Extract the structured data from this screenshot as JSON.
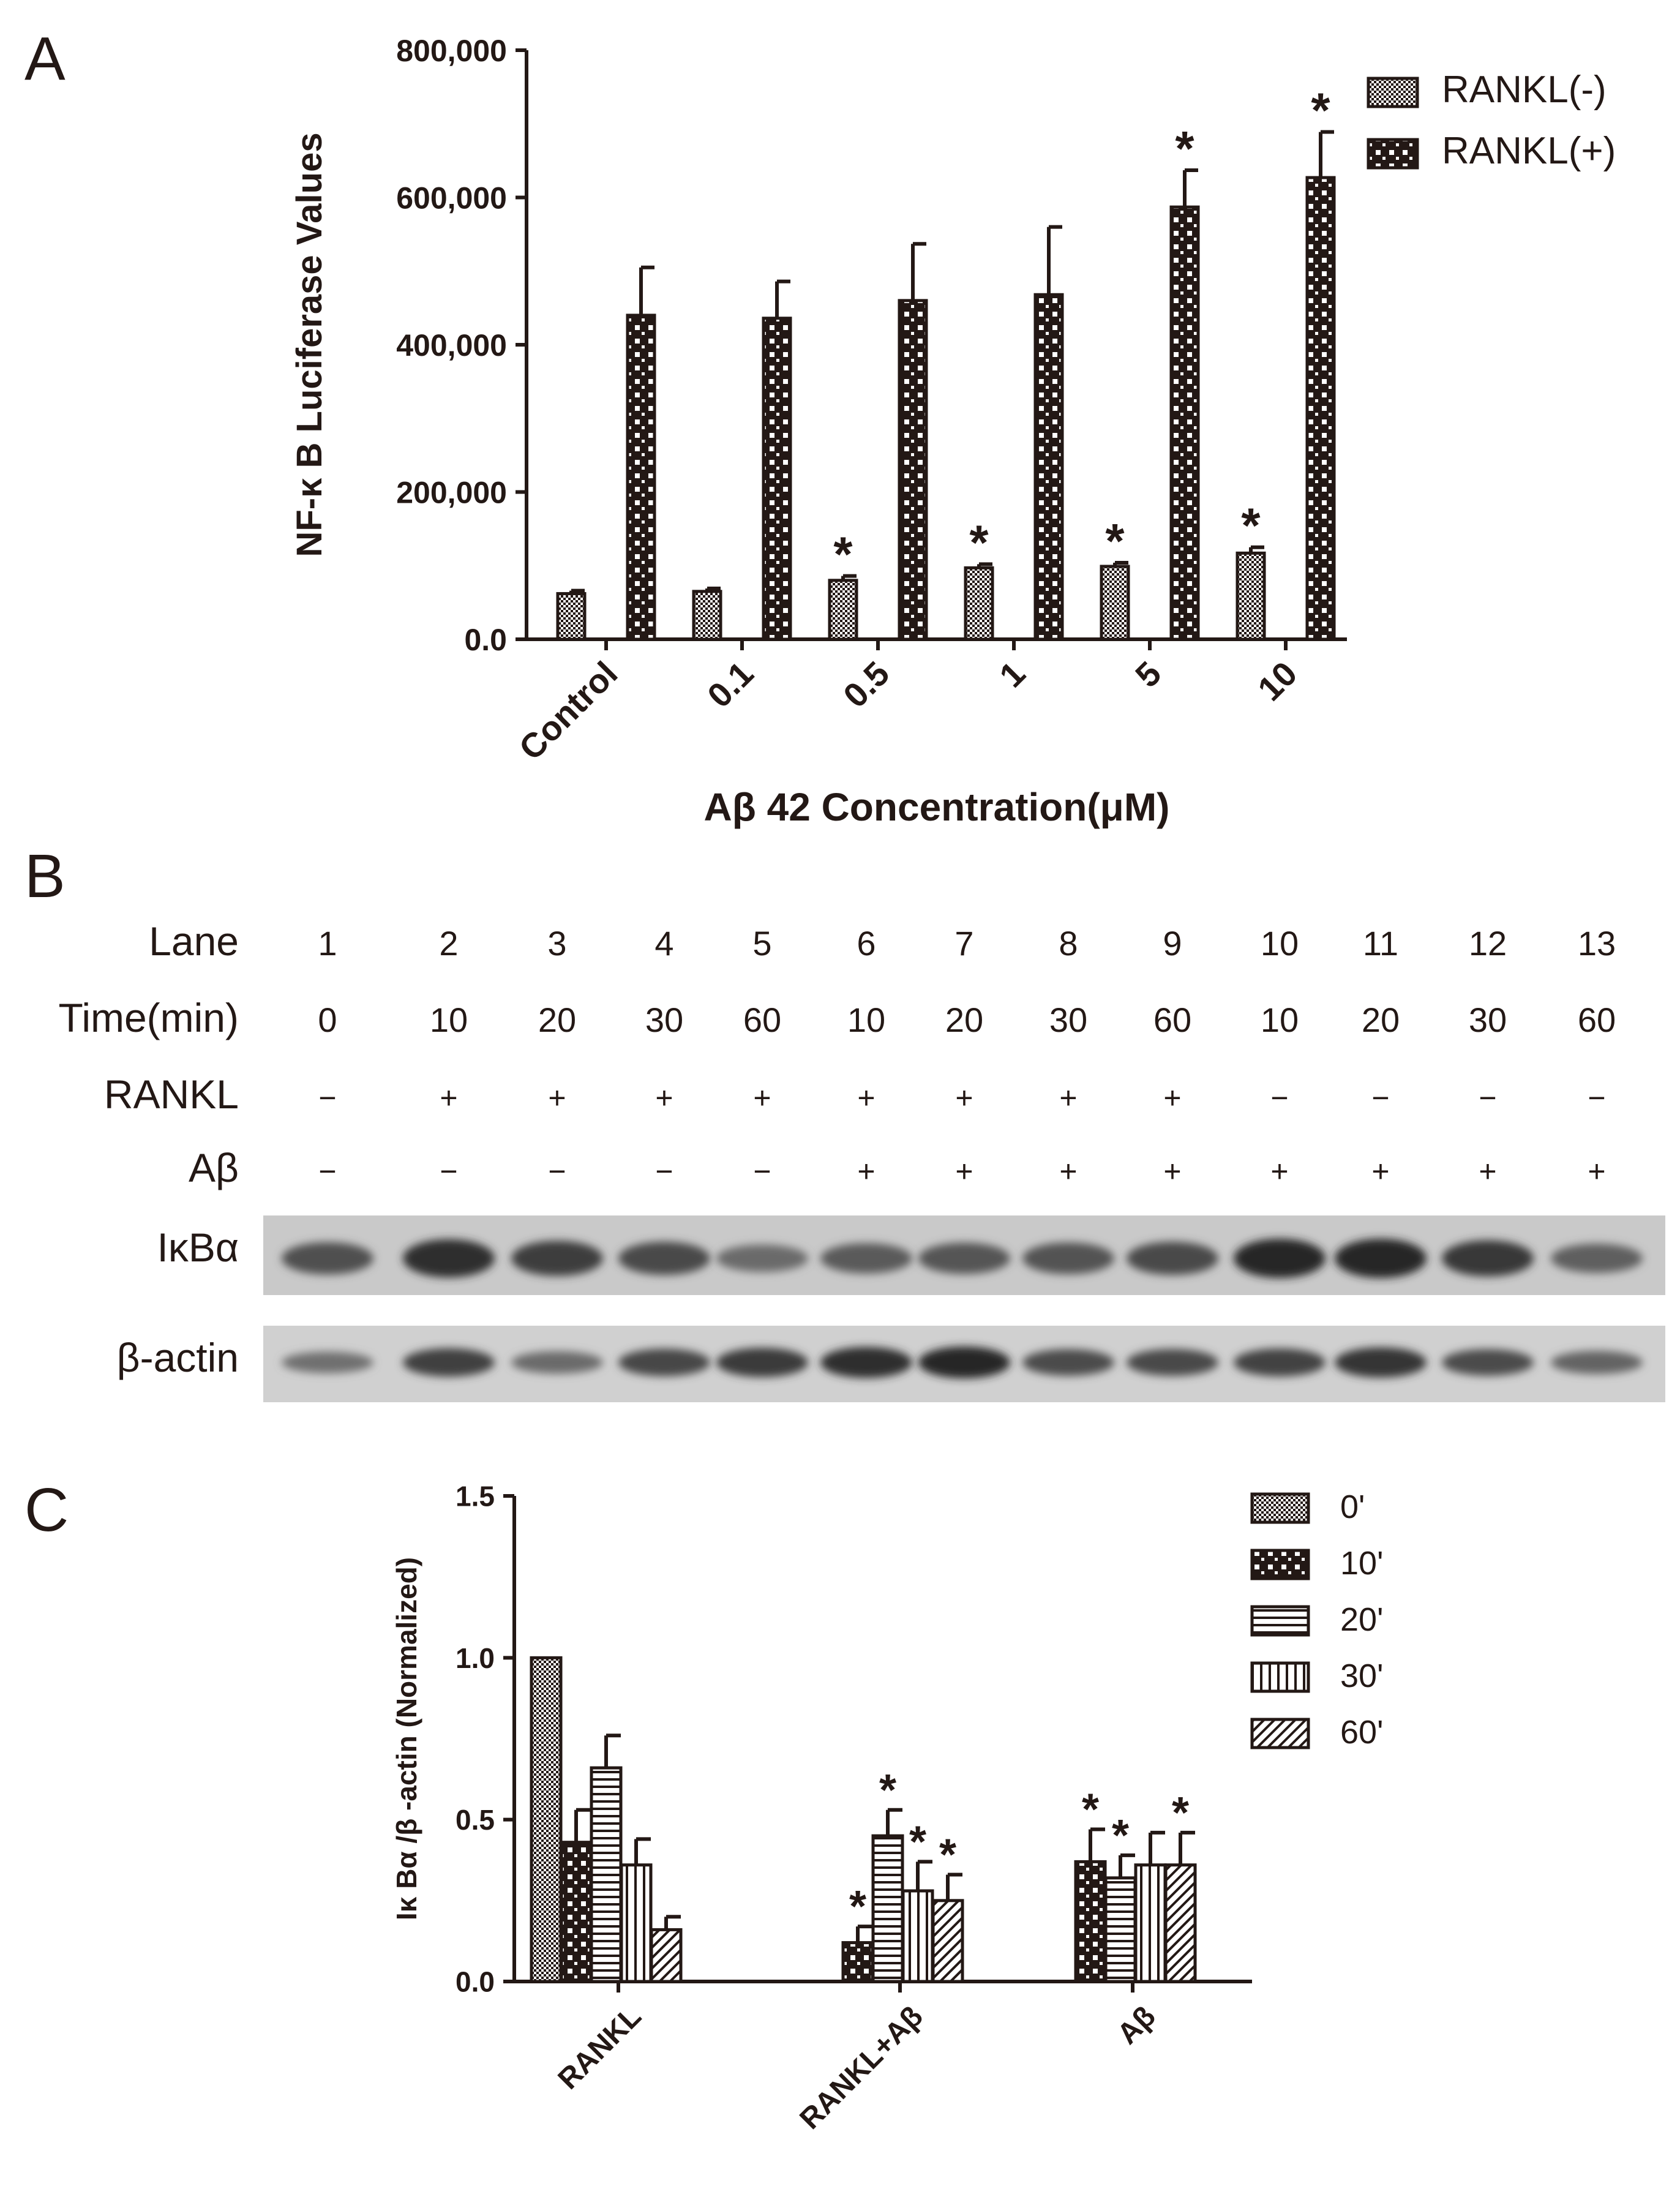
{
  "panel_labels": {
    "a": "A",
    "b": "B",
    "c": "C"
  },
  "colors": {
    "ink": "#231815",
    "background": "#ffffff",
    "band": "#1c1c1c"
  },
  "chart_data": [
    {
      "type": "bar",
      "panel": "A",
      "ylabel": "NF-κ B Luciferase Values",
      "xlabel": "Aβ 42 Concentration(μM)",
      "categories": [
        "Control",
        "0.1",
        "0.5",
        "1",
        "5",
        "10"
      ],
      "ylim": [
        0,
        800000
      ],
      "yticks": [
        0,
        200000,
        400000,
        600000,
        800000
      ],
      "ytick_labels": [
        "0.0",
        "200,000",
        "400,000",
        "600,000",
        "800,000"
      ],
      "legend_position": "top-right",
      "series": [
        {
          "name": "RANKL(-)",
          "pattern": "fine-checker",
          "values": [
            62000,
            65000,
            80000,
            97000,
            99000,
            117000
          ],
          "errors": [
            4000,
            4000,
            6000,
            5000,
            5000,
            8000
          ],
          "significant": [
            false,
            false,
            true,
            true,
            true,
            true
          ]
        },
        {
          "name": "RANKL(+)",
          "pattern": "coarse-checker",
          "values": [
            440000,
            436000,
            460000,
            468000,
            587000,
            627000
          ],
          "errors": [
            65000,
            50000,
            77000,
            92000,
            50000,
            62000
          ],
          "significant": [
            false,
            false,
            false,
            false,
            true,
            true
          ]
        }
      ],
      "significance_mark": "*"
    },
    {
      "type": "bar",
      "panel": "C",
      "ylabel": "Iκ Bα /β -actin (Normalized)",
      "xlabel": "",
      "categories": [
        "RANKL",
        "RANKL+Aβ",
        "Aβ"
      ],
      "ylim": [
        0,
        1.5
      ],
      "yticks": [
        0,
        0.5,
        1.0,
        1.5
      ],
      "ytick_labels": [
        "0.0",
        "0.5",
        "1.0",
        "1.5"
      ],
      "legend_position": "top-right",
      "series": [
        {
          "name": "0'",
          "pattern": "fine-checker",
          "values": [
            1.0,
            null,
            null
          ],
          "errors": [
            0,
            null,
            null
          ],
          "significant": [
            false,
            false,
            false
          ]
        },
        {
          "name": "10'",
          "pattern": "coarse-checker",
          "values": [
            0.43,
            0.12,
            0.37
          ],
          "errors": [
            0.1,
            0.05,
            0.1
          ],
          "significant": [
            false,
            true,
            true
          ]
        },
        {
          "name": "20'",
          "pattern": "horizontal-lines",
          "values": [
            0.66,
            0.45,
            0.32
          ],
          "errors": [
            0.1,
            0.08,
            0.07
          ],
          "significant": [
            false,
            true,
            true
          ]
        },
        {
          "name": "30'",
          "pattern": "vertical-lines",
          "values": [
            0.36,
            0.28,
            0.36
          ],
          "errors": [
            0.08,
            0.09,
            0.1
          ],
          "significant": [
            false,
            true,
            false
          ]
        },
        {
          "name": "60'",
          "pattern": "diagonal-lines",
          "values": [
            0.16,
            0.25,
            0.36
          ],
          "errors": [
            0.04,
            0.08,
            0.1
          ],
          "significant": [
            false,
            true,
            true
          ]
        }
      ],
      "significance_mark": "*"
    }
  ],
  "blot": {
    "row_headers": [
      "Lane",
      "Time(min)",
      "RANKL",
      "Aβ"
    ],
    "lanes": [
      "1",
      "2",
      "3",
      "4",
      "5",
      "6",
      "7",
      "8",
      "9",
      "10",
      "11",
      "12",
      "13"
    ],
    "times": [
      "0",
      "10",
      "20",
      "30",
      "60",
      "10",
      "20",
      "30",
      "60",
      "10",
      "20",
      "30",
      "60"
    ],
    "rankl": [
      "−",
      "+",
      "+",
      "+",
      "+",
      "+",
      "+",
      "+",
      "+",
      "−",
      "−",
      "−",
      "−"
    ],
    "abeta": [
      "−",
      "−",
      "−",
      "−",
      "−",
      "+",
      "+",
      "+",
      "+",
      "+",
      "+",
      "+",
      "+"
    ],
    "band_labels": [
      "IκBα",
      "β-actin"
    ],
    "ikba_intensity": [
      0.65,
      0.95,
      0.8,
      0.7,
      0.4,
      0.55,
      0.6,
      0.62,
      0.7,
      1.0,
      1.0,
      0.85,
      0.5
    ],
    "actin_intensity": [
      0.4,
      0.8,
      0.45,
      0.75,
      0.85,
      0.95,
      1.0,
      0.7,
      0.72,
      0.78,
      0.9,
      0.7,
      0.5
    ]
  }
}
